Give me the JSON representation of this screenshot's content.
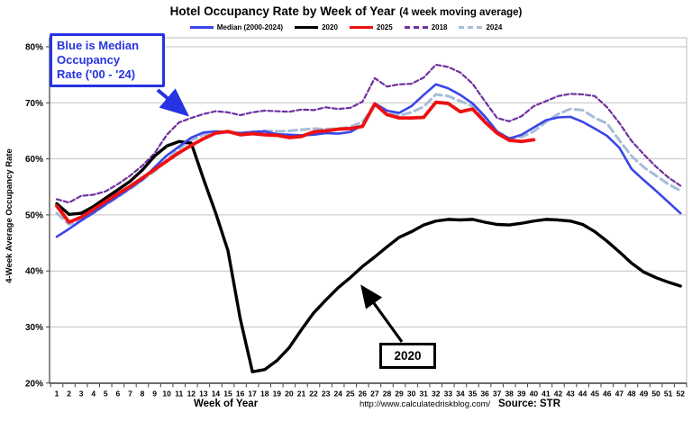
{
  "header": {
    "title_main": "Hotel Occupancy Rate by  Week of Year",
    "title_sub": "(4 week moving average)"
  },
  "chart_data": {
    "type": "line",
    "title": "Hotel Occupancy Rate by Week of Year (4 week moving average)",
    "xlabel": "Week of Year",
    "ylabel": "4-Week Average Occupancy Rate",
    "x": [
      1,
      2,
      3,
      4,
      5,
      6,
      7,
      8,
      9,
      10,
      11,
      12,
      13,
      14,
      15,
      16,
      17,
      18,
      19,
      20,
      21,
      22,
      23,
      24,
      25,
      26,
      27,
      28,
      29,
      30,
      31,
      32,
      33,
      34,
      35,
      36,
      37,
      38,
      39,
      40,
      41,
      42,
      43,
      44,
      45,
      46,
      47,
      48,
      49,
      50,
      51,
      52
    ],
    "yticks": [
      20,
      30,
      40,
      50,
      60,
      70,
      80
    ],
    "ylim": [
      20,
      81.5
    ],
    "grid": true,
    "legend_position": "top",
    "unit": "%",
    "series": [
      {
        "name": "Median (2000-2024)",
        "color": "#3a45e8",
        "style": "solid",
        "width": 2.6,
        "values": [
          46.1,
          47.5,
          49.0,
          50.4,
          51.9,
          53.3,
          54.8,
          56.3,
          58.5,
          60.6,
          62.2,
          63.8,
          64.7,
          64.9,
          64.8,
          64.6,
          64.8,
          64.9,
          64.4,
          64.3,
          64.2,
          64.3,
          64.6,
          64.5,
          64.8,
          66.0,
          69.9,
          68.6,
          68.2,
          69.4,
          71.4,
          73.3,
          72.6,
          71.4,
          69.9,
          67.6,
          64.9,
          63.6,
          64.3,
          65.6,
          66.9,
          67.4,
          67.5,
          66.6,
          65.4,
          64.1,
          62.0,
          58.2,
          56.2,
          54.3,
          52.3,
          50.3
        ]
      },
      {
        "name": "2020",
        "color": "#000000",
        "style": "solid",
        "width": 3.4,
        "values": [
          52.0,
          50.1,
          50.3,
          51.5,
          53.0,
          54.5,
          56.0,
          58.0,
          60.5,
          62.3,
          63.1,
          62.8,
          56.4,
          50.3,
          43.6,
          31.5,
          22.0,
          22.4,
          24.0,
          26.3,
          29.5,
          32.5,
          34.8,
          37.0,
          38.8,
          40.8,
          42.5,
          44.3,
          46.0,
          47.0,
          48.2,
          48.9,
          49.2,
          49.1,
          49.2,
          48.7,
          48.3,
          48.2,
          48.5,
          48.9,
          49.2,
          49.1,
          48.9,
          48.3,
          47.0,
          45.3,
          43.4,
          41.4,
          39.8,
          38.8,
          38.0,
          37.3
        ]
      },
      {
        "name": "2025",
        "color": "#ee1111",
        "style": "solid",
        "width": 3.8,
        "values": [
          51.6,
          48.7,
          49.6,
          51.0,
          52.4,
          53.8,
          55.1,
          56.6,
          58.1,
          59.6,
          61.1,
          62.4,
          63.6,
          64.6,
          64.9,
          64.3,
          64.5,
          64.3,
          64.2,
          63.8,
          64.0,
          64.8,
          65.0,
          65.3,
          65.4,
          65.8,
          69.8,
          67.9,
          67.3,
          67.3,
          67.4,
          70.1,
          69.9,
          68.4,
          68.9,
          66.6,
          64.6,
          63.3,
          63.1,
          63.4
        ]
      },
      {
        "name": "2018",
        "color": "#7030a0",
        "style": "dashed",
        "dash": "5 3",
        "width": 2.2,
        "values": [
          52.8,
          52.2,
          53.4,
          53.6,
          54.2,
          55.5,
          57.0,
          58.8,
          61.0,
          64.3,
          66.5,
          67.3,
          68.0,
          68.5,
          68.3,
          67.8,
          68.3,
          68.6,
          68.5,
          68.4,
          68.8,
          68.7,
          69.2,
          68.9,
          69.1,
          70.2,
          74.4,
          72.9,
          73.3,
          73.4,
          74.5,
          76.8,
          76.4,
          75.4,
          73.4,
          70.3,
          67.3,
          66.7,
          67.6,
          69.4,
          70.3,
          71.2,
          71.6,
          71.5,
          71.2,
          69.2,
          66.4,
          63.2,
          60.8,
          58.6,
          56.7,
          55.2
        ]
      },
      {
        "name": "2024",
        "color": "#a6bdd7",
        "style": "dashed",
        "dash": "9 5",
        "width": 3.0,
        "values": [
          50.3,
          48.3,
          49.0,
          50.3,
          51.8,
          53.2,
          54.6,
          56.2,
          57.8,
          59.8,
          61.8,
          63.3,
          64.3,
          64.6,
          64.7,
          64.6,
          64.8,
          65.0,
          64.9,
          65.0,
          65.2,
          65.4,
          65.3,
          65.4,
          65.7,
          66.6,
          69.6,
          68.4,
          67.7,
          68.3,
          69.3,
          71.5,
          71.2,
          70.3,
          69.4,
          67.3,
          64.8,
          63.7,
          63.9,
          64.9,
          66.6,
          68.0,
          68.9,
          68.7,
          67.3,
          66.3,
          63.3,
          60.5,
          58.5,
          57.0,
          55.5,
          54.3
        ]
      }
    ]
  },
  "annotations": {
    "median_note": {
      "line1": "Blue is Median",
      "line2": "Occupancy",
      "line3": "Rate ('00 - '24)"
    },
    "y2020_label": {
      "text": "2020"
    }
  },
  "footer": {
    "xlabel": "Week of Year",
    "url": "http://www.calculatedriskblog.com/",
    "source": "Source: STR"
  },
  "colors": {
    "median_blue": "#3a45e8",
    "black_2020": "#000000",
    "red_2025": "#ee1111",
    "purple_2018": "#7030a0",
    "gray_2024": "#a6bdd7",
    "gridline": "#c2c2c2",
    "annotation_blue": "#2633e0"
  }
}
